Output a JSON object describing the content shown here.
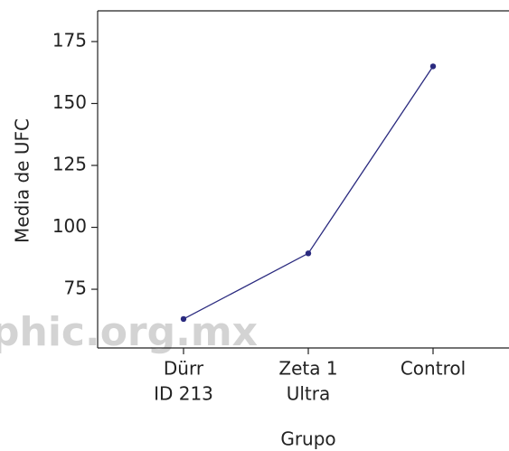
{
  "chart_data": {
    "type": "line",
    "categories": [
      [
        "Dürr",
        "ID 213"
      ],
      [
        "Zeta 1",
        "Ultra"
      ],
      [
        "Control"
      ]
    ],
    "series": [
      {
        "name": "Media de UFC",
        "color": "#2a2a7f",
        "values": [
          63,
          89.5,
          165
        ]
      }
    ],
    "ylim": [
      51.3,
      187.4
    ],
    "yticks": [
      75,
      100,
      125,
      150,
      175
    ],
    "ylabel": "Media de UFC",
    "xlabel": "Grupo",
    "watermark": "phic.org.mx"
  }
}
